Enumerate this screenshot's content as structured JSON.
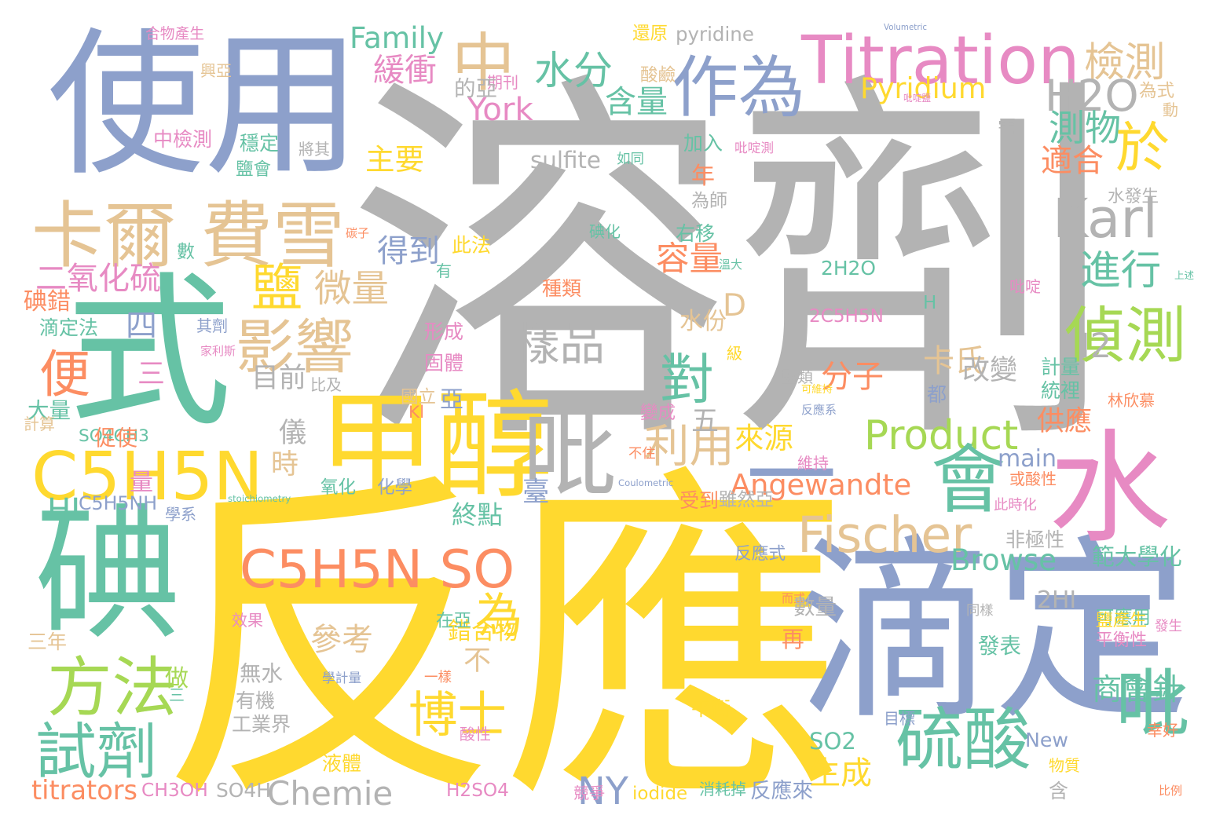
{
  "palette": {
    "gray": "#b3b3b3",
    "blue": "#8da0cb",
    "yellow": "#ffd92f",
    "green": "#66c2a5",
    "tan": "#e5c494",
    "pink": "#e78ac3",
    "orange": "#fc8d62",
    "lime": "#a6d854"
  },
  "words": [
    {
      "text": "溶劑",
      "color": "gray"
    },
    {
      "text": "反應",
      "color": "yellow"
    },
    {
      "text": "使用",
      "color": "blue"
    },
    {
      "text": "式",
      "color": "green"
    },
    {
      "text": "滴定",
      "color": "blue"
    },
    {
      "text": "甲醇",
      "color": "yellow"
    },
    {
      "text": "碘",
      "color": "green"
    },
    {
      "text": "水",
      "color": "pink"
    },
    {
      "text": "Titration",
      "color": "pink"
    },
    {
      "text": "卡爾",
      "color": "tan"
    },
    {
      "text": "費雪",
      "color": "tan"
    },
    {
      "text": "C5H5N",
      "color": "yellow"
    },
    {
      "text": "C5H5N SO",
      "color": "orange"
    },
    {
      "text": "吡",
      "color": "gray"
    },
    {
      "text": "一",
      "color": "blue"
    },
    {
      "text": "作為",
      "color": "blue"
    },
    {
      "text": "Fischer",
      "color": "tan"
    },
    {
      "text": "硫酸",
      "color": "green"
    },
    {
      "text": "吡",
      "color": "green"
    },
    {
      "text": "中",
      "color": "tan"
    },
    {
      "text": "方法",
      "color": "lime"
    },
    {
      "text": "試劑",
      "color": "green"
    },
    {
      "text": "影響",
      "color": "tan"
    },
    {
      "text": "偵測",
      "color": "lime"
    },
    {
      "text": "Karl",
      "color": "gray"
    },
    {
      "text": "Product",
      "color": "lime"
    },
    {
      "text": "會",
      "color": "green"
    },
    {
      "text": "對",
      "color": "green"
    },
    {
      "text": "於",
      "color": "yellow"
    },
    {
      "text": "博士",
      "color": "yellow"
    },
    {
      "text": "水分",
      "color": "green"
    },
    {
      "text": "檢測",
      "color": "tan"
    },
    {
      "text": "進行",
      "color": "green"
    },
    {
      "text": "H2O",
      "color": "gray"
    },
    {
      "text": "樣品",
      "color": "gray"
    },
    {
      "text": "利用",
      "color": "tan"
    },
    {
      "text": "鹽",
      "color": "yellow"
    },
    {
      "text": "微量",
      "color": "tan"
    },
    {
      "text": "二氧化硫",
      "color": "pink"
    },
    {
      "text": "便",
      "color": "orange"
    },
    {
      "text": "為",
      "color": "yellow"
    },
    {
      "text": "Family",
      "color": "green"
    },
    {
      "text": "Pyridium",
      "color": "yellow"
    },
    {
      "text": "緩衝",
      "color": "pink"
    },
    {
      "text": "含量",
      "color": "green"
    },
    {
      "text": "測物",
      "color": "green"
    },
    {
      "text": "主要",
      "color": "yellow"
    },
    {
      "text": "York",
      "color": "pink"
    },
    {
      "text": "適合",
      "color": "orange"
    },
    {
      "text": "容量",
      "color": "orange"
    },
    {
      "text": "得到",
      "color": "blue"
    },
    {
      "text": "Angewandte",
      "color": "orange"
    },
    {
      "text": "Browse",
      "color": "green"
    },
    {
      "text": "終點",
      "color": "green"
    },
    {
      "text": "參考",
      "color": "tan"
    },
    {
      "text": "Chemie",
      "color": "gray"
    },
    {
      "text": "titrators",
      "color": "orange"
    },
    {
      "text": "NY",
      "color": "blue"
    },
    {
      "text": "New",
      "color": "blue"
    },
    {
      "text": "SO2",
      "color": "green"
    },
    {
      "text": "生成",
      "color": "yellow"
    },
    {
      "text": "來源",
      "color": "yellow"
    },
    {
      "text": "供應",
      "color": "orange"
    },
    {
      "text": "分子",
      "color": "orange"
    },
    {
      "text": "卡氏",
      "color": "tan"
    },
    {
      "text": "改變",
      "color": "gray"
    },
    {
      "text": "I2",
      "color": "gray"
    },
    {
      "text": "範大學化",
      "color": "green"
    },
    {
      "text": "商會針",
      "color": "green"
    },
    {
      "text": "main",
      "color": "blue"
    },
    {
      "text": "水份",
      "color": "tan"
    },
    {
      "text": "目前",
      "color": "gray"
    },
    {
      "text": "四",
      "color": "blue"
    },
    {
      "text": "三",
      "color": "pink"
    },
    {
      "text": "時",
      "color": "tan"
    },
    {
      "text": "儀",
      "color": "gray"
    },
    {
      "text": "五",
      "color": "gray"
    },
    {
      "text": "不",
      "color": "tan"
    },
    {
      "text": "D",
      "color": "tan"
    },
    {
      "text": "HI",
      "color": "green"
    },
    {
      "text": "CH3OH",
      "color": "pink"
    },
    {
      "text": "SO4H",
      "color": "gray"
    },
    {
      "text": "H2SO4",
      "color": "pink"
    },
    {
      "text": "iodide",
      "color": "yellow"
    },
    {
      "text": "反應來",
      "color": "blue"
    },
    {
      "text": "2H2O",
      "color": "green"
    },
    {
      "text": "2C5H5N",
      "color": "pink"
    },
    {
      "text": "sulfite",
      "color": "gray"
    },
    {
      "text": "pyridine",
      "color": "gray"
    },
    {
      "text": "氧化",
      "color": "green"
    },
    {
      "text": "化學",
      "color": "blue"
    },
    {
      "text": "滴定法",
      "color": "green"
    },
    {
      "text": "碘錯",
      "color": "orange"
    },
    {
      "text": "中檢測",
      "color": "pink"
    },
    {
      "text": "穩定",
      "color": "green"
    },
    {
      "text": "加入",
      "color": "green"
    },
    {
      "text": "右移",
      "color": "green"
    },
    {
      "text": "種類",
      "color": "orange"
    },
    {
      "text": "此法",
      "color": "yellow"
    },
    {
      "text": "形成",
      "color": "pink"
    },
    {
      "text": "固體",
      "color": "pink"
    },
    {
      "text": "國立",
      "color": "tan"
    },
    {
      "text": "亞",
      "color": "blue"
    },
    {
      "text": "SO4CH3",
      "color": "green"
    },
    {
      "text": "C5H5NH",
      "color": "blue"
    },
    {
      "text": "期刊",
      "color": "pink"
    },
    {
      "text": "還原",
      "color": "yellow"
    },
    {
      "text": "酸鹼",
      "color": "tan"
    },
    {
      "text": "為式",
      "color": "tan"
    },
    {
      "text": "需",
      "color": "gray"
    },
    {
      "text": "動",
      "color": "tan"
    },
    {
      "text": "計量",
      "color": "green"
    },
    {
      "text": "統裡",
      "color": "green"
    },
    {
      "text": "林欣慕",
      "color": "orange"
    },
    {
      "text": "都",
      "color": "blue"
    },
    {
      "text": "或酸性",
      "color": "orange"
    },
    {
      "text": "非極性",
      "color": "gray"
    },
    {
      "text": "反應式",
      "color": "blue"
    },
    {
      "text": "平衡性",
      "color": "pink"
    },
    {
      "text": "可應用",
      "color": "green"
    },
    {
      "text": "2HI",
      "color": "gray"
    },
    {
      "text": "發表",
      "color": "green"
    },
    {
      "text": "目標",
      "color": "blue"
    },
    {
      "text": "物質",
      "color": "yellow"
    },
    {
      "text": "含",
      "color": "gray"
    },
    {
      "text": "酸性",
      "color": "pink"
    },
    {
      "text": "液體",
      "color": "yellow"
    },
    {
      "text": "平衡",
      "color": "yellow"
    },
    {
      "text": "錯合物",
      "color": "yellow"
    },
    {
      "text": "無水",
      "color": "gray"
    },
    {
      "text": "有機",
      "color": "gray"
    },
    {
      "text": "工業界",
      "color": "gray"
    },
    {
      "text": "三年",
      "color": "tan"
    },
    {
      "text": "做",
      "color": "lime"
    },
    {
      "text": "學系",
      "color": "blue"
    },
    {
      "text": "促使",
      "color": "orange"
    },
    {
      "text": "大量",
      "color": "green"
    },
    {
      "text": "計算",
      "color": "tan"
    },
    {
      "text": "量",
      "color": "pink"
    },
    {
      "text": "比及",
      "color": "gray"
    },
    {
      "text": "其劑",
      "color": "blue"
    },
    {
      "text": "家利斯",
      "color": "pink"
    },
    {
      "text": "受到",
      "color": "orange"
    },
    {
      "text": "雖然亞",
      "color": "gray"
    },
    {
      "text": "臺",
      "color": "blue"
    },
    {
      "text": "鹽類",
      "color": "gray"
    },
    {
      "text": "年",
      "color": "orange"
    },
    {
      "text": "鹽會",
      "color": "green"
    },
    {
      "text": "的亞",
      "color": "gray"
    },
    {
      "text": "溫大",
      "color": "green"
    },
    {
      "text": "反應系",
      "color": "blue"
    },
    {
      "text": "可維持",
      "color": "yellow"
    },
    {
      "text": "變成",
      "color": "pink"
    },
    {
      "text": "此時化",
      "color": "pink"
    },
    {
      "text": "而式",
      "color": "orange"
    },
    {
      "text": "再",
      "color": "orange"
    },
    {
      "text": "數量",
      "color": "gray"
    },
    {
      "text": "學計量",
      "color": "blue"
    },
    {
      "text": "效果",
      "color": "pink"
    },
    {
      "text": "在亞",
      "color": "green"
    },
    {
      "text": "鹽產生",
      "color": "yellow"
    },
    {
      "text": "消耗掉",
      "color": "green"
    },
    {
      "text": "合物產生",
      "color": "pink"
    },
    {
      "text": "興亞",
      "color": "tan"
    },
    {
      "text": "Volumetric",
      "color": "blue"
    },
    {
      "text": "Coulometric",
      "color": "blue"
    },
    {
      "text": "stoichiometry",
      "color": "green"
    },
    {
      "text": "H",
      "color": "green"
    },
    {
      "text": "級",
      "color": "yellow"
    },
    {
      "text": "維持",
      "color": "pink"
    },
    {
      "text": "競爭",
      "color": "pink"
    },
    {
      "text": "比例",
      "color": "orange"
    },
    {
      "text": "幸好",
      "color": "orange"
    },
    {
      "text": "水發生",
      "color": "gray"
    },
    {
      "text": "將其",
      "color": "gray"
    },
    {
      "text": "碳子",
      "color": "orange"
    },
    {
      "text": "碘化",
      "color": "green"
    },
    {
      "text": "如同",
      "color": "green"
    },
    {
      "text": "為師",
      "color": "gray"
    },
    {
      "text": "吡啶鹽",
      "color": "pink"
    },
    {
      "text": "吡啶測",
      "color": "pink"
    },
    {
      "text": "吡啶",
      "color": "pink"
    },
    {
      "text": "Kl",
      "color": "orange"
    },
    {
      "text": "一樣",
      "color": "orange"
    },
    {
      "text": "同樣",
      "color": "gray"
    },
    {
      "text": "發生",
      "color": "pink"
    },
    {
      "text": "有",
      "color": "green"
    },
    {
      "text": "數",
      "color": "green"
    },
    {
      "text": "三",
      "color": "green"
    },
    {
      "text": "不住",
      "color": "orange"
    },
    {
      "text": "上述",
      "color": "green"
    }
  ]
}
